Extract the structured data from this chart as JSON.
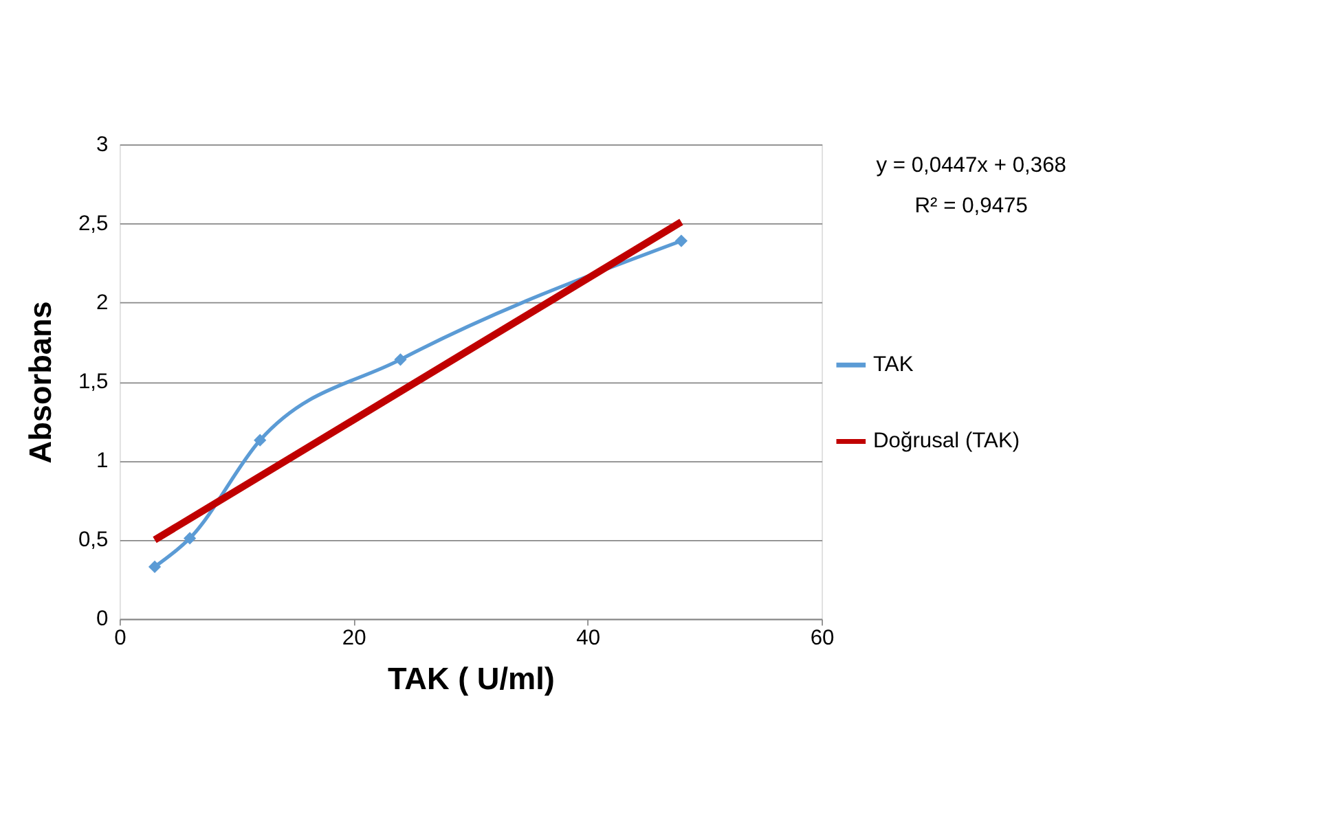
{
  "chart_data": {
    "type": "line",
    "xlabel": "TAK ( U/ml)",
    "ylabel": "Absorbans",
    "series": [
      {
        "name": "TAK",
        "color": "#5b9bd5",
        "marker": "diamond",
        "x": [
          3,
          6,
          12,
          24,
          48
        ],
        "values": [
          0.33,
          0.51,
          1.13,
          1.64,
          2.39
        ]
      },
      {
        "name": "Doğrusal (TAK)",
        "color": "#c00000",
        "marker": "none",
        "x": [
          3,
          48
        ],
        "values": [
          0.5,
          2.51
        ]
      }
    ],
    "xlim": [
      0,
      60
    ],
    "xticks": [
      0,
      20,
      40,
      60
    ],
    "ylim": [
      0,
      3
    ],
    "yticks": [
      0,
      {
        "value": 0.5,
        "label": "0,5"
      },
      1,
      {
        "value": 1.5,
        "label": "1,5"
      },
      2,
      {
        "value": 2.5,
        "label": "2,5"
      },
      3
    ],
    "grid": "y",
    "legend": "right",
    "annotations": [
      "y = 0,0447x + 0,368",
      "R² = 0,9475"
    ]
  }
}
